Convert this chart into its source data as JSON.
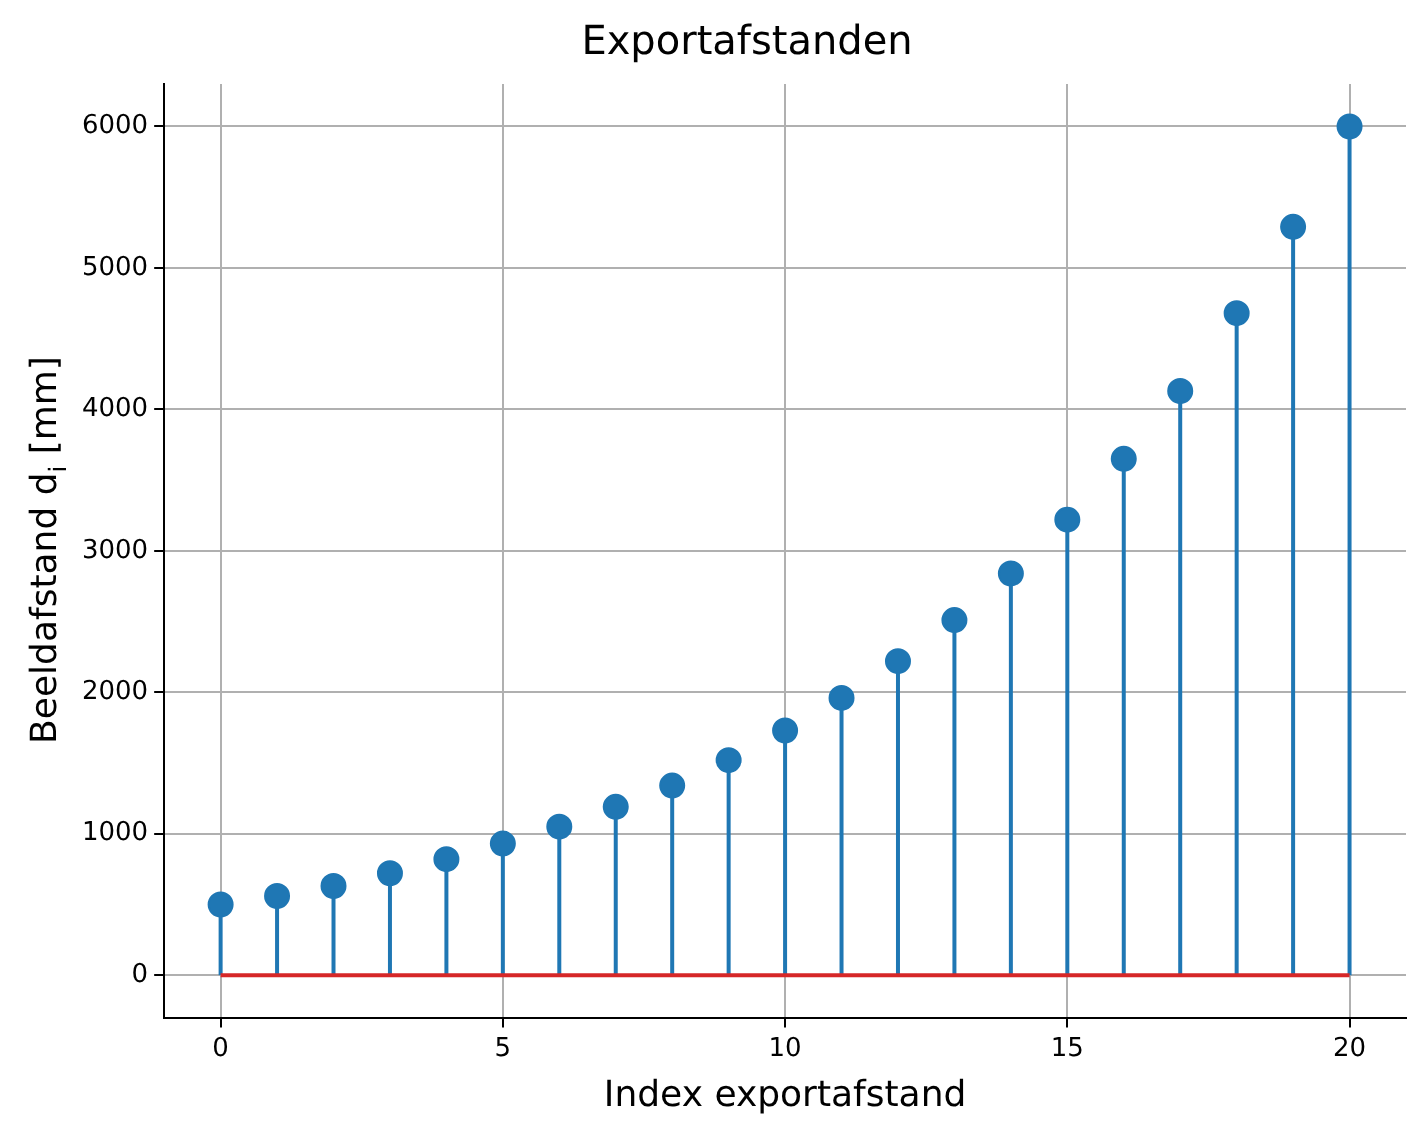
{
  "chart_data": {
    "type": "lollipop",
    "title": "Exportafstanden",
    "xlabel": "Index exportafstand",
    "ylabel": "Beeldafstand d$_{i}$ [mm]",
    "x": [
      0,
      1,
      2,
      3,
      4,
      5,
      6,
      7,
      8,
      9,
      10,
      11,
      12,
      13,
      14,
      15,
      16,
      17,
      18,
      19,
      20
    ],
    "series": [
      {
        "color": "#1f77b4",
        "values": [
          500,
          560,
          630,
          720,
          820,
          930,
          1050,
          1190,
          1340,
          1520,
          1730,
          1960,
          2220,
          2510,
          2840,
          3220,
          3650,
          4130,
          4680,
          5290,
          6000
        ]
      }
    ],
    "xlim": [
      -1,
      21
    ],
    "xticks": [
      0,
      5,
      10,
      15,
      20
    ],
    "ylim": [
      -300,
      6300
    ],
    "yticks": [
      0,
      1000,
      2000,
      3000,
      4000,
      5000,
      6000
    ],
    "ref_lines": [
      {
        "axis": "y",
        "value": 0,
        "color": "#d62728"
      }
    ],
    "grid": true,
    "marker": "circle"
  }
}
